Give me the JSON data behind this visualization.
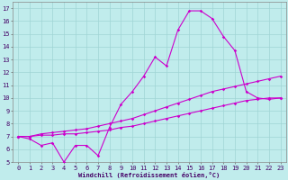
{
  "title": "",
  "xlabel": "Windchill (Refroidissement éolien,°C)",
  "ylabel": "",
  "bg_color": "#c0ecec",
  "grid_color": "#a0d4d4",
  "line_color": "#cc00cc",
  "xlim": [
    -0.5,
    23.5
  ],
  "ylim": [
    5,
    17.5
  ],
  "x_ticks": [
    0,
    1,
    2,
    3,
    4,
    5,
    6,
    7,
    8,
    9,
    10,
    11,
    12,
    13,
    14,
    15,
    16,
    17,
    18,
    19,
    20,
    21,
    22,
    23
  ],
  "y_ticks": [
    5,
    6,
    7,
    8,
    9,
    10,
    11,
    12,
    13,
    14,
    15,
    16,
    17
  ],
  "line1_x": [
    0,
    1,
    2,
    3,
    4,
    5,
    6,
    7,
    8,
    9,
    10,
    11,
    12,
    13,
    14,
    15,
    16,
    17,
    18,
    19,
    20,
    21,
    22,
    23
  ],
  "line1_y": [
    7.0,
    6.8,
    6.3,
    6.5,
    5.0,
    6.3,
    6.3,
    5.5,
    7.7,
    9.5,
    10.5,
    11.7,
    13.2,
    12.5,
    15.3,
    16.8,
    16.8,
    16.2,
    14.8,
    13.7,
    10.5,
    10.0,
    9.9,
    10.0
  ],
  "line2_x": [
    0,
    1,
    2,
    3,
    4,
    5,
    6,
    7,
    8,
    9,
    10,
    11,
    12,
    13,
    14,
    15,
    16,
    17,
    18,
    19,
    20,
    21,
    22,
    23
  ],
  "line2_y": [
    7.0,
    7.0,
    7.2,
    7.3,
    7.4,
    7.5,
    7.6,
    7.8,
    8.0,
    8.2,
    8.4,
    8.7,
    9.0,
    9.3,
    9.6,
    9.9,
    10.2,
    10.5,
    10.7,
    10.9,
    11.1,
    11.3,
    11.5,
    11.7
  ],
  "line3_x": [
    0,
    1,
    2,
    3,
    4,
    5,
    6,
    7,
    8,
    9,
    10,
    11,
    12,
    13,
    14,
    15,
    16,
    17,
    18,
    19,
    20,
    21,
    22,
    23
  ],
  "line3_y": [
    7.0,
    7.0,
    7.1,
    7.1,
    7.2,
    7.2,
    7.3,
    7.4,
    7.5,
    7.7,
    7.8,
    8.0,
    8.2,
    8.4,
    8.6,
    8.8,
    9.0,
    9.2,
    9.4,
    9.6,
    9.8,
    9.9,
    10.0,
    10.0
  ],
  "tick_fontsize": 5,
  "xlabel_fontsize": 5,
  "marker_size": 1.8,
  "line_width": 0.8
}
